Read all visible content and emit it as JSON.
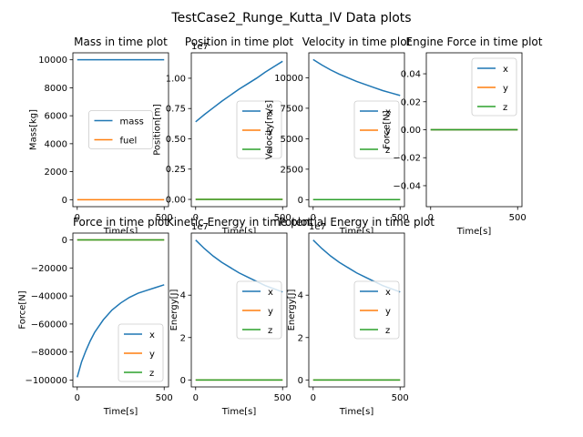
{
  "figure": {
    "suptitle": "TestCase2_Runge_Kutta_IV Data plots"
  },
  "colors": {
    "blue": "#1f77b4",
    "orange": "#ff7f0e",
    "green": "#2ca02c"
  },
  "chart_data": [
    {
      "type": "line",
      "title": "Mass in time plot",
      "xlabel": "Time[s]",
      "ylabel": "Mass[kg]",
      "xlim": [
        -25,
        525
      ],
      "ylim": [
        -500,
        10500
      ],
      "xticks": [
        0,
        500
      ],
      "xtick_labels": [
        "0",
        "500"
      ],
      "yticks": [
        0,
        2000,
        4000,
        6000,
        8000,
        10000
      ],
      "ytick_labels": [
        "0",
        "2000",
        "4000",
        "6000",
        "8000",
        "10000"
      ],
      "offset_label": "",
      "legend": "center",
      "series": [
        {
          "name": "mass",
          "color": "#1f77b4",
          "x": [
            0,
            500
          ],
          "y": [
            10000,
            10000
          ]
        },
        {
          "name": "fuel",
          "color": "#ff7f0e",
          "x": [
            0,
            500
          ],
          "y": [
            0,
            0
          ]
        }
      ]
    },
    {
      "type": "line",
      "title": "Position in time plot",
      "xlabel": "Time[s]",
      "ylabel": "Position[m]",
      "xlim": [
        -25,
        525
      ],
      "ylim": [
        -0.06,
        1.21
      ],
      "xticks": [
        0,
        500
      ],
      "xtick_labels": [
        "0",
        "500"
      ],
      "yticks": [
        0,
        0.25,
        0.5,
        0.75,
        1.0
      ],
      "ytick_labels": [
        "0.00",
        "0.25",
        "0.50",
        "0.75",
        "1.00"
      ],
      "offset_label": "1e7",
      "legend": "center right",
      "series": [
        {
          "name": "x",
          "color": "#1f77b4",
          "x": [
            0,
            50,
            100,
            150,
            200,
            250,
            300,
            350,
            400,
            450,
            500
          ],
          "y": [
            0.64,
            0.7,
            0.755,
            0.81,
            0.86,
            0.91,
            0.955,
            1.0,
            1.05,
            1.095,
            1.14
          ]
        },
        {
          "name": "y",
          "color": "#ff7f0e",
          "x": [
            0,
            500
          ],
          "y": [
            0,
            0
          ]
        },
        {
          "name": "z",
          "color": "#2ca02c",
          "x": [
            0,
            500
          ],
          "y": [
            0,
            0
          ]
        }
      ]
    },
    {
      "type": "line",
      "title": "Velocity in time plot",
      "xlabel": "Time[s]",
      "ylabel": "Velocity[m/s]",
      "xlim": [
        -25,
        525
      ],
      "ylim": [
        -575,
        12050
      ],
      "xticks": [
        0,
        500
      ],
      "xtick_labels": [
        "0",
        "500"
      ],
      "yticks": [
        0,
        2500,
        5000,
        7500,
        10000
      ],
      "ytick_labels": [
        "0",
        "2500",
        "5000",
        "7500",
        "10000"
      ],
      "offset_label": "",
      "legend": "center right",
      "series": [
        {
          "name": "x",
          "color": "#1f77b4",
          "x": [
            0,
            50,
            100,
            150,
            200,
            250,
            300,
            350,
            400,
            450,
            500
          ],
          "y": [
            11500,
            11050,
            10650,
            10300,
            10000,
            9700,
            9450,
            9200,
            8950,
            8750,
            8550
          ]
        },
        {
          "name": "y",
          "color": "#ff7f0e",
          "x": [
            0,
            500
          ],
          "y": [
            0,
            0
          ]
        },
        {
          "name": "z",
          "color": "#2ca02c",
          "x": [
            0,
            500
          ],
          "y": [
            0,
            0
          ]
        }
      ]
    },
    {
      "type": "line",
      "title": "Engine Force in time plot",
      "xlabel": "Time[s]",
      "ylabel": "Force[N]",
      "xlim": [
        -25,
        525
      ],
      "ylim": [
        -0.055,
        0.055
      ],
      "xticks": [
        0,
        500
      ],
      "xtick_labels": [
        "0",
        "500"
      ],
      "yticks": [
        -0.04,
        -0.02,
        0,
        0.02,
        0.04
      ],
      "ytick_labels": [
        "−0.04",
        "−0.02",
        "0.00",
        "0.02",
        "0.04"
      ],
      "offset_label": "",
      "legend": "upper right",
      "series": [
        {
          "name": "x",
          "color": "#1f77b4",
          "x": [
            0,
            500
          ],
          "y": [
            0,
            0
          ]
        },
        {
          "name": "y",
          "color": "#ff7f0e",
          "x": [
            0,
            500
          ],
          "y": [
            0,
            0
          ]
        },
        {
          "name": "z",
          "color": "#2ca02c",
          "x": [
            0,
            500
          ],
          "y": [
            0,
            0
          ]
        }
      ]
    },
    {
      "type": "line",
      "title": "Force in time plot",
      "xlabel": "Time[s]",
      "ylabel": "Force[N]",
      "xlim": [
        -25,
        525
      ],
      "ylim": [
        -104900,
        4900
      ],
      "xticks": [
        0,
        500
      ],
      "xtick_labels": [
        "0",
        "500"
      ],
      "yticks": [
        -100000,
        -80000,
        -60000,
        -40000,
        -20000,
        0
      ],
      "ytick_labels": [
        "−100000",
        "−80000",
        "−60000",
        "−40000",
        "−20000",
        "0"
      ],
      "offset_label": "",
      "legend": "lower right",
      "series": [
        {
          "name": "x",
          "color": "#1f77b4",
          "x": [
            0,
            25,
            50,
            75,
            100,
            150,
            200,
            250,
            300,
            350,
            400,
            450,
            500
          ],
          "y": [
            -98000,
            -87000,
            -79000,
            -72000,
            -66000,
            -57000,
            -50000,
            -45000,
            -41000,
            -38000,
            -36000,
            -34000,
            -32000
          ]
        },
        {
          "name": "y",
          "color": "#ff7f0e",
          "x": [
            0,
            500
          ],
          "y": [
            0,
            0
          ]
        },
        {
          "name": "z",
          "color": "#2ca02c",
          "x": [
            0,
            500
          ],
          "y": [
            0,
            0
          ]
        }
      ]
    },
    {
      "type": "line",
      "title": "Kinetic Energy in time plot",
      "xlabel": "Time[s]",
      "ylabel": "Energy[J]",
      "xlim": [
        -25,
        525
      ],
      "ylim": [
        -0.33,
        6.93
      ],
      "xticks": [
        0,
        500
      ],
      "xtick_labels": [
        "0",
        "500"
      ],
      "yticks": [
        0,
        2,
        4
      ],
      "ytick_labels": [
        "0",
        "2",
        "4"
      ],
      "offset_label": "1e7",
      "legend": "center right",
      "series": [
        {
          "name": "x",
          "color": "#1f77b4",
          "x": [
            0,
            50,
            100,
            150,
            200,
            250,
            300,
            350,
            400,
            450,
            500
          ],
          "y": [
            6.6,
            6.2,
            5.85,
            5.55,
            5.3,
            5.05,
            4.85,
            4.65,
            4.45,
            4.3,
            4.15
          ]
        },
        {
          "name": "y",
          "color": "#ff7f0e",
          "x": [
            0,
            500
          ],
          "y": [
            0,
            0
          ]
        },
        {
          "name": "z",
          "color": "#2ca02c",
          "x": [
            0,
            500
          ],
          "y": [
            0,
            0
          ]
        }
      ]
    },
    {
      "type": "line",
      "title": "Potential Energy in time plot",
      "xlabel": "Time[s]",
      "ylabel": "Energy[J]",
      "xlim": [
        -25,
        525
      ],
      "ylim": [
        -0.33,
        6.93
      ],
      "xticks": [
        0,
        500
      ],
      "xtick_labels": [
        "0",
        "500"
      ],
      "yticks": [
        0,
        2,
        4
      ],
      "ytick_labels": [
        "0",
        "2",
        "4"
      ],
      "offset_label": "1e7",
      "legend": "center right",
      "series": [
        {
          "name": "x",
          "color": "#1f77b4",
          "x": [
            0,
            50,
            100,
            150,
            200,
            250,
            300,
            350,
            400,
            450,
            500
          ],
          "y": [
            6.6,
            6.2,
            5.85,
            5.55,
            5.3,
            5.05,
            4.85,
            4.65,
            4.45,
            4.3,
            4.15
          ]
        },
        {
          "name": "y",
          "color": "#ff7f0e",
          "x": [
            0,
            500
          ],
          "y": [
            0,
            0
          ]
        },
        {
          "name": "z",
          "color": "#2ca02c",
          "x": [
            0,
            500
          ],
          "y": [
            0,
            0
          ]
        }
      ]
    }
  ]
}
